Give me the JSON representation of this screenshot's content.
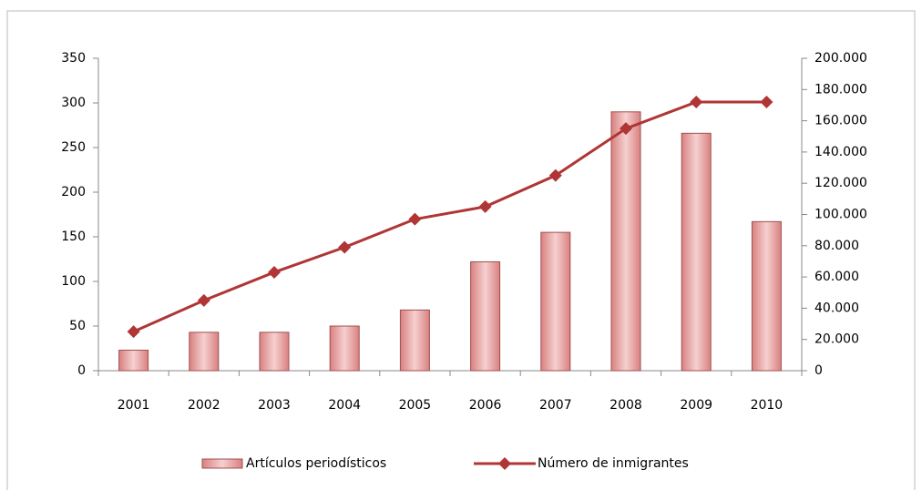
{
  "chart_data": {
    "type": "bar-line",
    "categories": [
      "2001",
      "2002",
      "2003",
      "2004",
      "2005",
      "2006",
      "2007",
      "2008",
      "2009",
      "2010"
    ],
    "series": [
      {
        "name": "Artículos periodísticos",
        "color": "#d98080",
        "values": [
          23,
          43,
          43,
          50,
          68,
          122,
          155,
          290,
          266,
          167
        ]
      },
      {
        "name": "Número de inmigrantes",
        "color": "#b03535",
        "axis": "y2",
        "values": [
          25000,
          45000,
          63000,
          79000,
          97000,
          105000,
          125000,
          155000,
          172000,
          172000
        ]
      }
    ],
    "ylim": [
      0,
      350
    ],
    "yticks": [
      0,
      50,
      100,
      150,
      200,
      250,
      300,
      350
    ],
    "y2lim": [
      0,
      200000
    ],
    "y2ticks": [
      0,
      {
        "value": 20000,
        "label": "20.000"
      },
      {
        "value": 40000,
        "label": "40.000"
      },
      {
        "value": 60000,
        "label": "60.000"
      },
      {
        "value": 80000,
        "label": "80.000"
      },
      {
        "value": 100000,
        "label": "100.000"
      },
      {
        "value": 120000,
        "label": "120.000"
      },
      {
        "value": 140000,
        "label": "140.000"
      },
      {
        "value": 160000,
        "label": "160.000"
      },
      {
        "value": 180000,
        "label": "180.000"
      },
      {
        "value": 200000,
        "label": "200.000"
      }
    ],
    "legend": "bottom"
  }
}
